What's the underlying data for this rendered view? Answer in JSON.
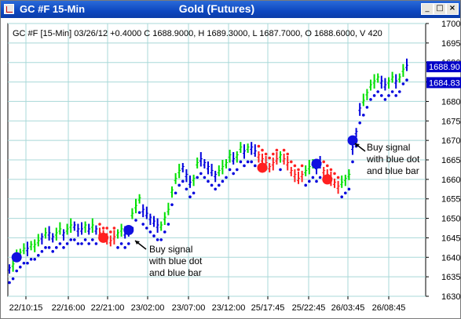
{
  "window": {
    "title_left": "GC #F 15-Min",
    "title_center": "Gold (Futures)",
    "buttons": [
      "minimize-button",
      "maximize-button",
      "close-button"
    ]
  },
  "colors": {
    "up_bar": "#00e000",
    "down_bar": "#0000dd",
    "red": "#ff2020",
    "grid": "#a8d8d8",
    "price_label_bg": "#0000c8"
  },
  "chart_data": {
    "type": "bar",
    "info_line": "GC #F [15-Min] 03/26/12  +0.4000  C 1688.9000, H 1689.3000, L 1687.7000, O 1688.6000, V 420",
    "y_ticks": [
      "1700",
      "1695",
      "1690",
      "1685",
      "1680",
      "1675",
      "1670",
      "1665",
      "1660",
      "1655",
      "1650",
      "1645",
      "1640",
      "1635",
      "1630"
    ],
    "ylim": [
      1630,
      1700
    ],
    "x_ticks": [
      "22/10:15",
      "22/16:00",
      "22/21:00",
      "23/02:00",
      "23/07:00",
      "23/12:00",
      "25/17:45",
      "25/22:45",
      "26/03:45",
      "26/08:45"
    ],
    "price_labels": [
      "1688.90",
      "1684.83"
    ],
    "annotations": [
      {
        "text": [
          "Buy signal",
          "with blue dot",
          "and blue bar"
        ],
        "target": "bar at 23/02:00"
      },
      {
        "text": [
          "Buy signal",
          "with blue dot",
          "and blue bar"
        ],
        "target": "bar at 26/03:45"
      }
    ],
    "signals": [
      {
        "color": "blue",
        "index": 2,
        "price": 1640
      },
      {
        "color": "red",
        "index": 26,
        "price": 1645
      },
      {
        "color": "blue",
        "index": 33,
        "price": 1647
      },
      {
        "color": "red",
        "index": 70,
        "price": 1663
      },
      {
        "color": "blue",
        "index": 85,
        "price": 1664
      },
      {
        "color": "red",
        "index": 88,
        "price": 1660
      },
      {
        "color": "blue",
        "index": 95,
        "price": 1670
      }
    ],
    "bars_path": [
      1637,
      1638,
      1640,
      1641,
      1642,
      1642,
      1643,
      1643,
      1644,
      1645,
      1646,
      1646,
      1645,
      1646,
      1647,
      1646,
      1647,
      1648,
      1648,
      1647,
      1647,
      1648,
      1647,
      1648,
      1647,
      1646,
      1645,
      1645,
      1644,
      1645,
      1646,
      1647,
      1646,
      1647,
      1651,
      1653,
      1655,
      1652,
      1651,
      1650,
      1649,
      1648,
      1648,
      1650,
      1652,
      1657,
      1660,
      1662,
      1663,
      1661,
      1659,
      1660,
      1664,
      1665,
      1664,
      1663,
      1662,
      1661,
      1662,
      1663,
      1664,
      1666,
      1665,
      1666,
      1668,
      1667,
      1668,
      1668,
      1667,
      1666,
      1665,
      1664,
      1663,
      1664,
      1665,
      1666,
      1665,
      1664,
      1662,
      1661,
      1660,
      1661,
      1662,
      1663,
      1664,
      1663,
      1664,
      1662,
      1661,
      1660,
      1659,
      1658,
      1659,
      1660,
      1661,
      1668,
      1672,
      1678,
      1680,
      1682,
      1684,
      1685,
      1686,
      1685,
      1684,
      1685,
      1686,
      1685,
      1686,
      1688,
      1689
    ],
    "bars_color": [
      "b",
      "g",
      "g",
      "g",
      "g",
      "b",
      "g",
      "g",
      "g",
      "b",
      "g",
      "b",
      "b",
      "g",
      "g",
      "b",
      "g",
      "g",
      "b",
      "b",
      "b",
      "g",
      "b",
      "g",
      "b",
      "r",
      "r",
      "r",
      "r",
      "r",
      "g",
      "g",
      "b",
      "b",
      "g",
      "g",
      "g",
      "b",
      "b",
      "b",
      "b",
      "b",
      "g",
      "g",
      "g",
      "g",
      "g",
      "g",
      "b",
      "b",
      "b",
      "g",
      "g",
      "b",
      "b",
      "b",
      "b",
      "b",
      "g",
      "g",
      "g",
      "g",
      "b",
      "g",
      "g",
      "b",
      "g",
      "b",
      "b",
      "r",
      "r",
      "r",
      "r",
      "r",
      "r",
      "g",
      "r",
      "r",
      "r",
      "r",
      "r",
      "r",
      "g",
      "g",
      "g",
      "b",
      "b",
      "r",
      "r",
      "r",
      "r",
      "r",
      "g",
      "g",
      "g",
      "b",
      "b",
      "b",
      "g",
      "g",
      "g",
      "g",
      "g",
      "b",
      "b",
      "g",
      "g",
      "b",
      "g",
      "g",
      "b"
    ]
  }
}
